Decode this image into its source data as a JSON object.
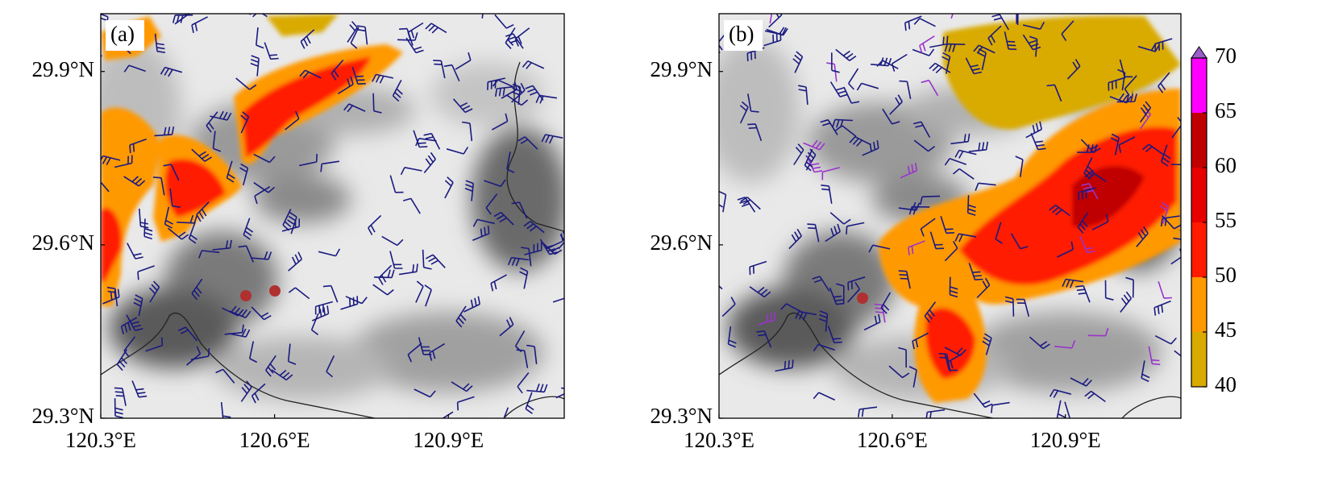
{
  "panels": [
    {
      "label": "(a)",
      "xlim": [
        120.3,
        121.1
      ],
      "ylim": [
        29.3,
        30.0
      ],
      "xticks": [
        {
          "value": 120.3,
          "label": "120.3°E"
        },
        {
          "value": 120.6,
          "label": "120.6°E"
        },
        {
          "value": 120.9,
          "label": "120.9°E"
        }
      ],
      "yticks": [
        {
          "value": 29.3,
          "label": "29.3°N"
        },
        {
          "value": 29.6,
          "label": "29.6°N"
        },
        {
          "value": 29.9,
          "label": "29.9°N"
        }
      ]
    },
    {
      "label": "(b)",
      "xlim": [
        120.3,
        121.1
      ],
      "ylim": [
        29.3,
        30.0
      ],
      "xticks": [
        {
          "value": 120.3,
          "label": "120.3°E"
        },
        {
          "value": 120.6,
          "label": "120.6°E"
        },
        {
          "value": 120.9,
          "label": "120.9°E"
        }
      ],
      "yticks": [
        {
          "value": 29.3,
          "label": "29.3°N"
        },
        {
          "value": 29.6,
          "label": "29.6°N"
        },
        {
          "value": 29.9,
          "label": "29.9°N"
        }
      ]
    }
  ],
  "colorbar": {
    "levels": [
      40,
      45,
      50,
      55,
      60,
      65,
      70
    ],
    "colors": [
      "#d9aa00",
      "#ff9900",
      "#ff1a00",
      "#e60000",
      "#c00000",
      "#ff00ff"
    ],
    "extend_color": "#9a5cc8"
  }
}
